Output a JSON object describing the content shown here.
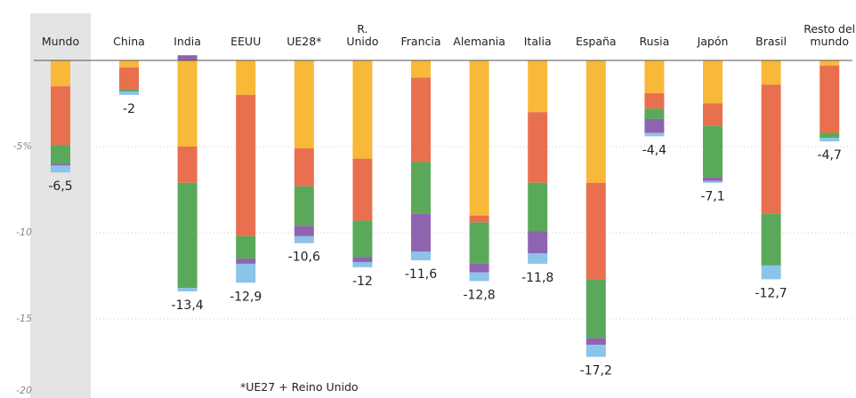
{
  "chart_data": {
    "type": "stacked_bar",
    "categories": [
      "Mundo",
      "China",
      "India",
      "EEUU",
      "UE28*",
      "R.\nUnido",
      "Francia",
      "Alemania",
      "Italia",
      "España",
      "Rusia",
      "Japón",
      "Brasil",
      "Resto del\nmundo"
    ],
    "series": [
      {
        "color": "#f9b938",
        "values": [
          -1.5,
          -0.4,
          -5,
          -2,
          -5.1,
          -5.7,
          -1,
          -9,
          -3,
          -7.1,
          -1.9,
          -2.5,
          -1.4,
          -0.3
        ]
      },
      {
        "color": "#e8704f",
        "values": [
          -3.4,
          -1.3,
          -2.1,
          -8.2,
          -2.2,
          -3.6,
          -4.9,
          -0.4,
          -4.1,
          -5.6,
          -0.9,
          -1.3,
          -7.5,
          -3.9
        ]
      },
      {
        "color": "#5aa95a",
        "values": [
          -1.1,
          -0.1,
          -6.1,
          -1.3,
          -2.3,
          -2.1,
          -3,
          -2.4,
          -2.8,
          -3.4,
          -0.6,
          -3,
          -3,
          -0.3
        ]
      },
      {
        "color": "#8e64b0",
        "values": [
          -0.1,
          0,
          0.3,
          -0.3,
          -0.6,
          -0.3,
          -2.2,
          -0.5,
          -1.3,
          -0.4,
          -0.8,
          -0.2,
          0,
          0
        ]
      },
      {
        "color": "#8cc3e8",
        "values": [
          -0.4,
          -0.2,
          -0.2,
          -1.1,
          -0.4,
          -0.3,
          -0.5,
          -0.5,
          -0.6,
          -0.7,
          -0.2,
          -0.1,
          -0.8,
          -0.2
        ]
      }
    ],
    "totals": [
      -6.5,
      -2,
      -13.4,
      -12.9,
      -10.6,
      -12,
      -11.6,
      -12.8,
      -11.8,
      -17.2,
      -4.4,
      -7.1,
      -12.7,
      -4.7
    ],
    "total_labels": [
      "-6,5",
      "-2",
      "-13,4",
      "-12,9",
      "-10,6",
      "-12",
      "-11,6",
      "-12,8",
      "-11,8",
      "-17,2",
      "-4,4",
      "-7,1",
      "-12,7",
      "-4,7"
    ],
    "ylim": [
      -20,
      0
    ],
    "yticks": [
      {
        "value": -5,
        "label": "-5%"
      },
      -10,
      -15,
      -20
    ],
    "grid": true,
    "highlight": "Mundo",
    "footnote": "*UE27 + Reino Unido"
  }
}
